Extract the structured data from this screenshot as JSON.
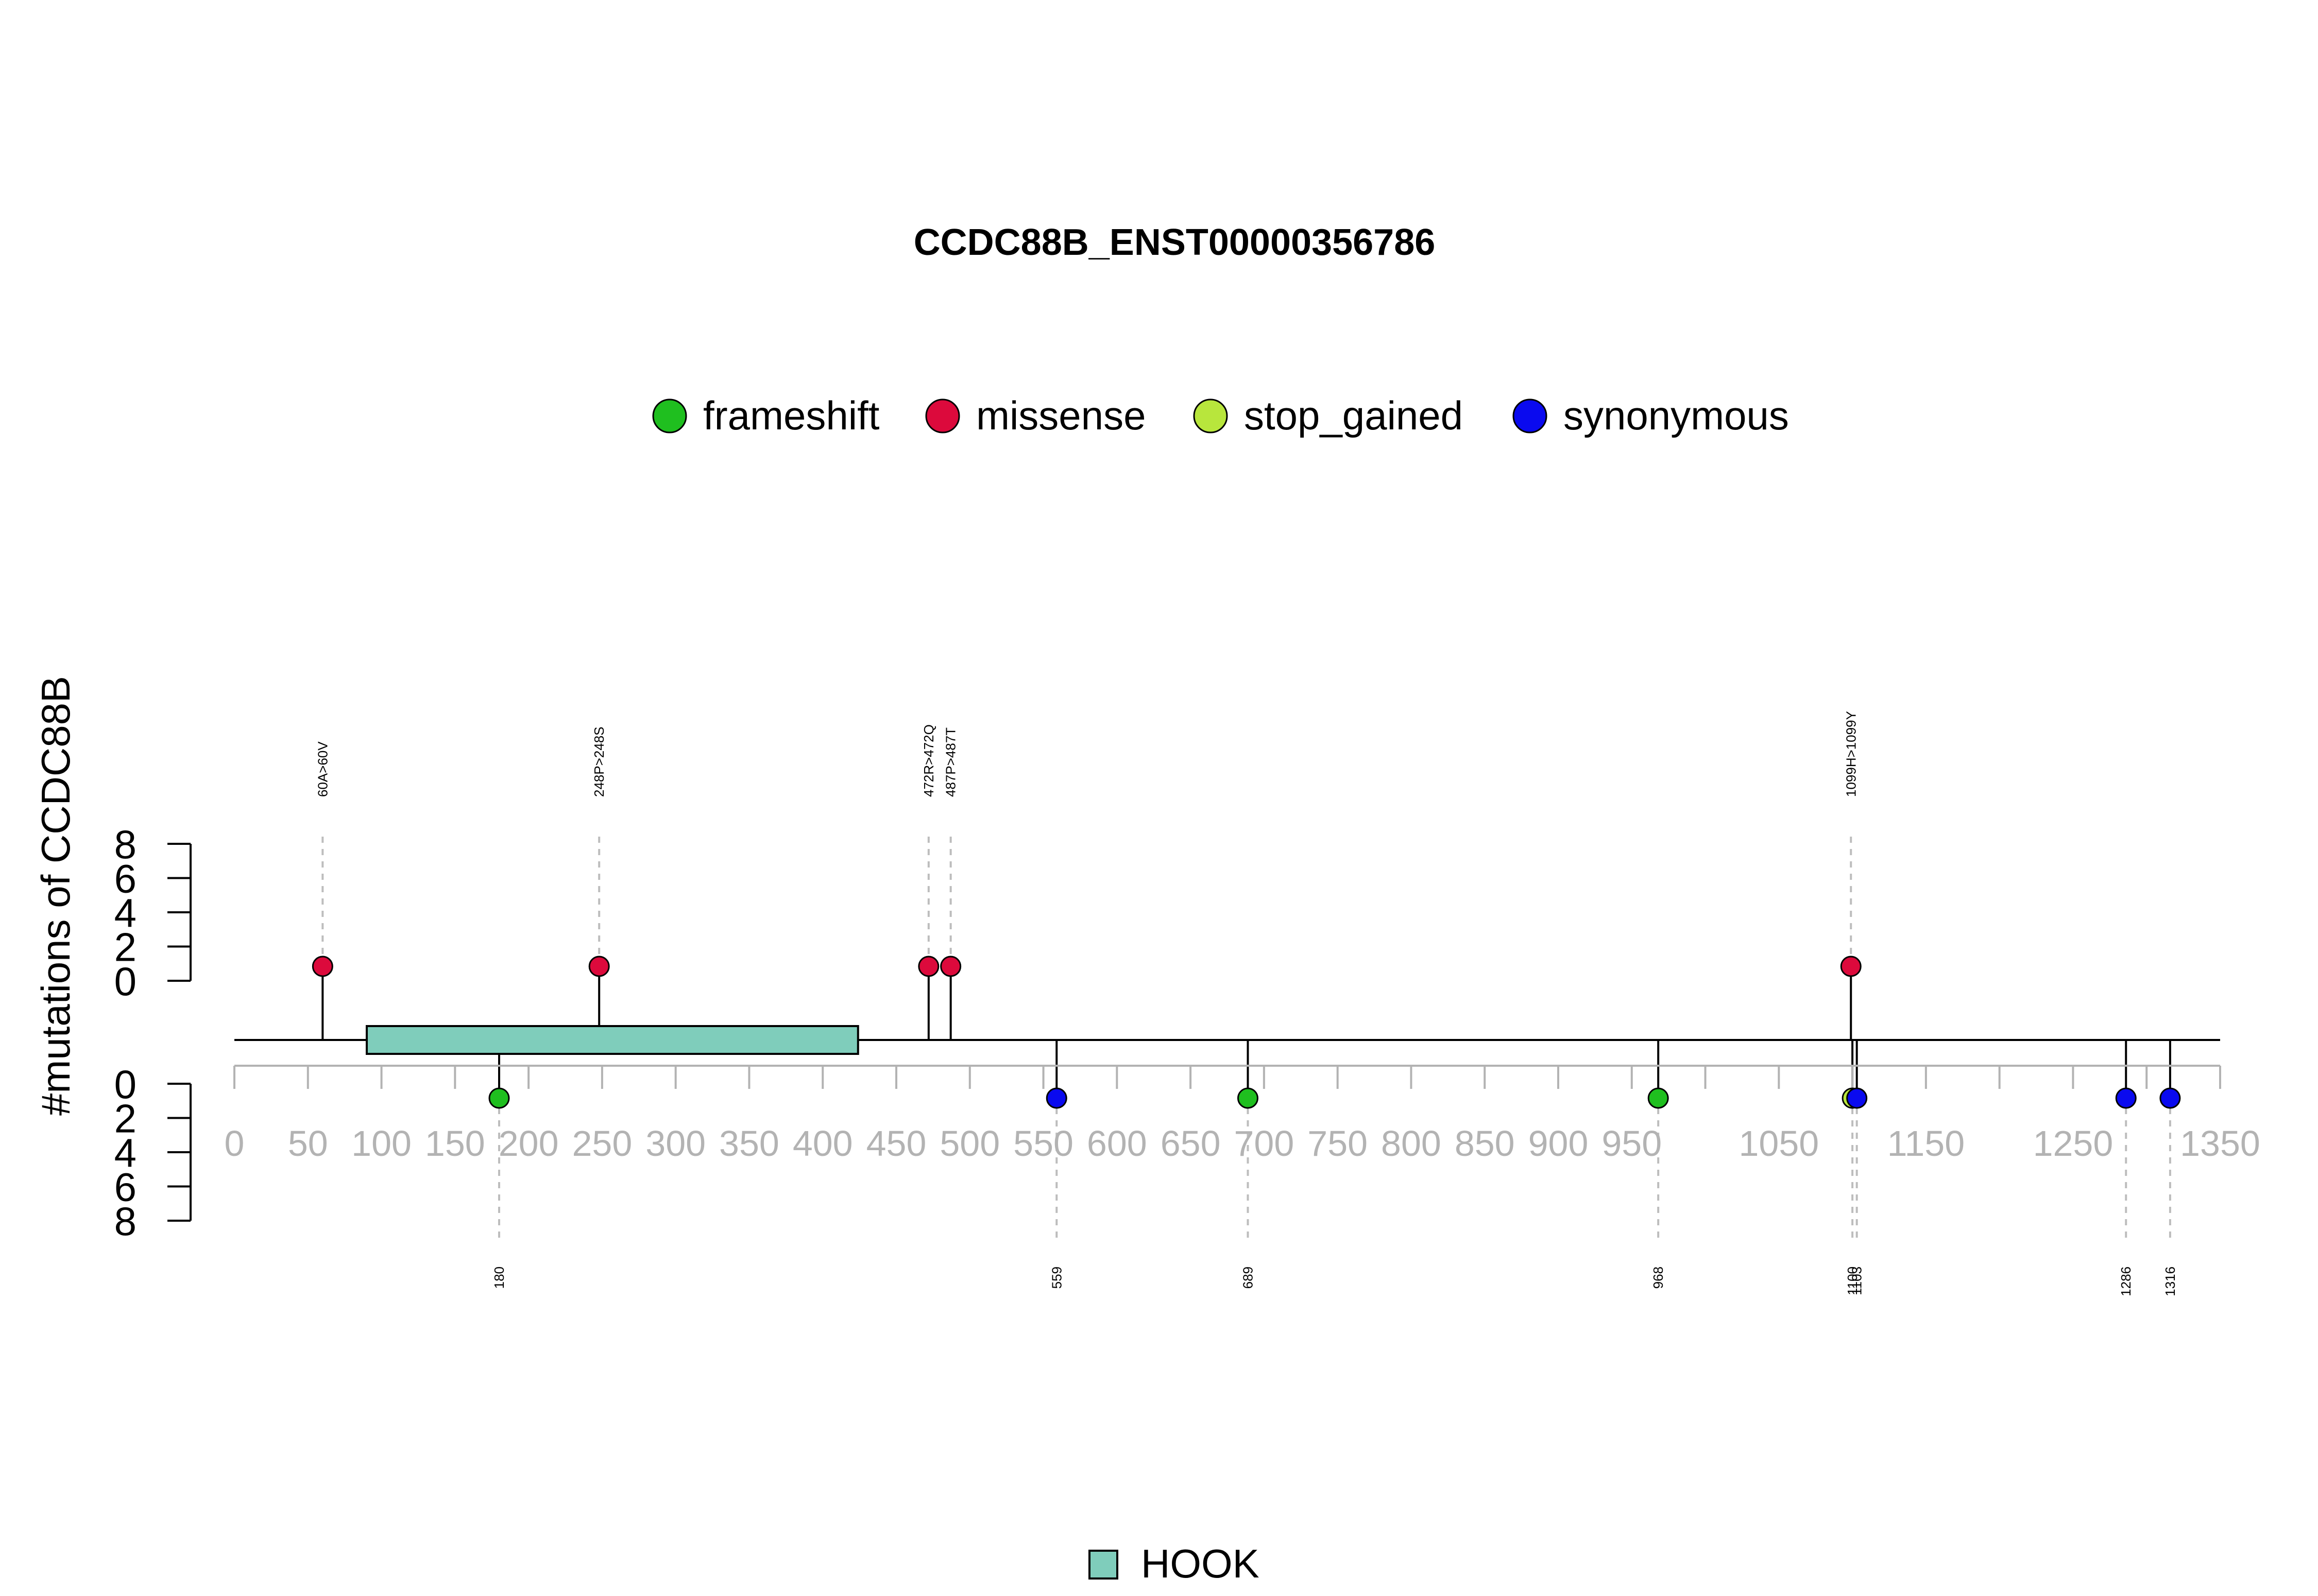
{
  "chart_data": {
    "type": "lollipop",
    "title": "CCDC88B_ENST00000356786",
    "ylabel": "#mutations of CCDC88B",
    "xlim": [
      0,
      1350
    ],
    "x_ticks": [
      0,
      50,
      100,
      150,
      200,
      250,
      300,
      350,
      400,
      450,
      500,
      550,
      600,
      650,
      700,
      750,
      800,
      850,
      900,
      950,
      1050,
      1150,
      1250,
      1350
    ],
    "x_minor_ticks": [
      1000,
      1100,
      1200,
      1300
    ],
    "y_ticks_top": [
      "8",
      "6",
      "4",
      "2",
      "0"
    ],
    "y_ticks_bottom": [
      "0",
      "2",
      "4",
      "6",
      "8"
    ],
    "legend": [
      {
        "name": "frameshift",
        "color": "#1fbf1f"
      },
      {
        "name": "missense",
        "color": "#dc0a3c"
      },
      {
        "name": "stop_gained",
        "color": "#b8e63c"
      },
      {
        "name": "synonymous",
        "color": "#0a0aef"
      }
    ],
    "domains": [
      {
        "name": "HOOK",
        "start": 90,
        "end": 424,
        "color": "#7fcdbb"
      }
    ],
    "mutations_top": [
      {
        "position": 60,
        "label": "60A>60V",
        "type": "missense",
        "count": 1
      },
      {
        "position": 248,
        "label": "248P>248S",
        "type": "missense",
        "count": 1
      },
      {
        "position": 472,
        "label": "472R>472Q",
        "type": "missense",
        "count": 1
      },
      {
        "position": 487,
        "label": "487P>487T",
        "type": "missense",
        "count": 1
      },
      {
        "position": 1099,
        "label": "1099H>1099Y",
        "type": "missense",
        "count": 1
      }
    ],
    "mutations_bottom": [
      {
        "position": 180,
        "label": "180",
        "type": "frameshift",
        "count": 1
      },
      {
        "position": 559,
        "label": "559",
        "type": "synonymous",
        "count": 1
      },
      {
        "position": 689,
        "label": "689",
        "type": "frameshift",
        "count": 1
      },
      {
        "position": 968,
        "label": "968",
        "type": "frameshift",
        "count": 1
      },
      {
        "position": 1100,
        "label": "1100",
        "type": "stop_gained",
        "count": 1
      },
      {
        "position": 1103,
        "label": "1103",
        "type": "synonymous",
        "count": 1
      },
      {
        "position": 1286,
        "label": "1286",
        "type": "synonymous",
        "count": 1
      },
      {
        "position": 1316,
        "label": "1316",
        "type": "synonymous",
        "count": 1
      }
    ]
  }
}
